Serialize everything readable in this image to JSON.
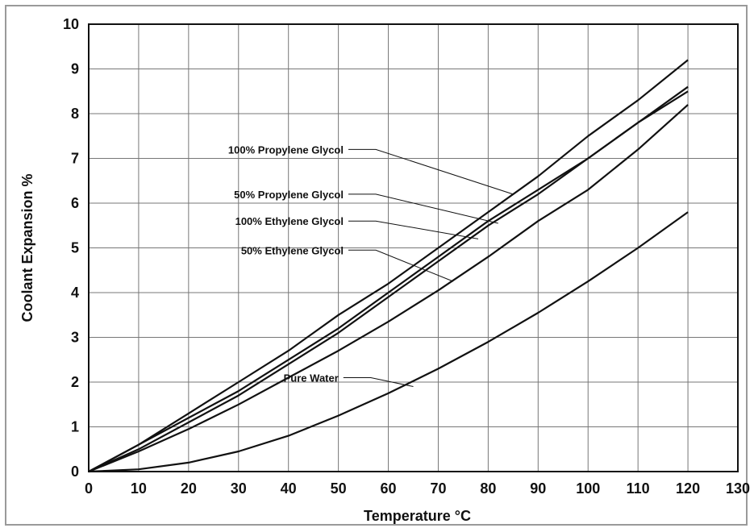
{
  "chart_data": {
    "type": "line",
    "title": "",
    "xlabel": "Temperature °C",
    "ylabel": "Coolant Expansion %",
    "xlim": [
      0,
      130
    ],
    "ylim": [
      0,
      10
    ],
    "xticks": [
      0,
      10,
      20,
      30,
      40,
      50,
      60,
      70,
      80,
      90,
      100,
      110,
      120,
      130
    ],
    "yticks": [
      0,
      1,
      2,
      3,
      4,
      5,
      6,
      7,
      8,
      9,
      10
    ],
    "grid": true,
    "legend": "inline-leader-labels",
    "line_color": "#111111",
    "series": [
      {
        "name": "100% Propylene Glycol",
        "x": [
          0,
          10,
          20,
          30,
          40,
          50,
          60,
          70,
          80,
          90,
          100,
          110,
          120
        ],
        "y": [
          0,
          0.6,
          1.3,
          2.0,
          2.7,
          3.5,
          4.2,
          5.0,
          5.8,
          6.6,
          7.5,
          8.3,
          9.2
        ]
      },
      {
        "name": "50% Propylene Glycol",
        "x": [
          0,
          10,
          20,
          30,
          40,
          50,
          60,
          70,
          80,
          90,
          100,
          110,
          120
        ],
        "y": [
          0,
          0.6,
          1.2,
          1.8,
          2.5,
          3.2,
          4.0,
          4.8,
          5.6,
          6.3,
          7.0,
          7.8,
          8.5
        ]
      },
      {
        "name": "100% Ethylene Glycol",
        "x": [
          0,
          10,
          20,
          30,
          40,
          50,
          60,
          70,
          80,
          90,
          100,
          110,
          120
        ],
        "y": [
          0,
          0.5,
          1.1,
          1.7,
          2.4,
          3.1,
          3.9,
          4.7,
          5.5,
          6.2,
          7.0,
          7.8,
          8.6
        ]
      },
      {
        "name": "50% Ethylene Glycol",
        "x": [
          0,
          10,
          20,
          30,
          40,
          50,
          60,
          70,
          80,
          90,
          100,
          110,
          120
        ],
        "y": [
          0,
          0.45,
          0.95,
          1.5,
          2.1,
          2.7,
          3.35,
          4.05,
          4.8,
          5.6,
          6.3,
          7.2,
          8.2
        ]
      },
      {
        "name": "Pure Water",
        "x": [
          0,
          10,
          20,
          30,
          40,
          50,
          60,
          70,
          80,
          90,
          100,
          110,
          120
        ],
        "y": [
          0,
          0.05,
          0.2,
          0.45,
          0.8,
          1.25,
          1.75,
          2.3,
          2.9,
          3.55,
          4.25,
          5.0,
          5.8
        ]
      }
    ],
    "annotations": [
      {
        "text": "100% Propylene Glycol",
        "anchor": [
          52,
          7.2
        ],
        "target": [
          85,
          6.2
        ]
      },
      {
        "text": "50% Propylene Glycol",
        "anchor": [
          52,
          6.2
        ],
        "target": [
          82,
          5.55
        ]
      },
      {
        "text": "100% Ethylene Glycol",
        "anchor": [
          52,
          5.6
        ],
        "target": [
          78,
          5.2
        ]
      },
      {
        "text": "50% Ethylene Glycol",
        "anchor": [
          52,
          4.95
        ],
        "target": [
          73,
          4.25
        ]
      },
      {
        "text": "Pure Water",
        "anchor": [
          51,
          2.1
        ],
        "target": [
          65,
          1.9
        ]
      }
    ]
  }
}
